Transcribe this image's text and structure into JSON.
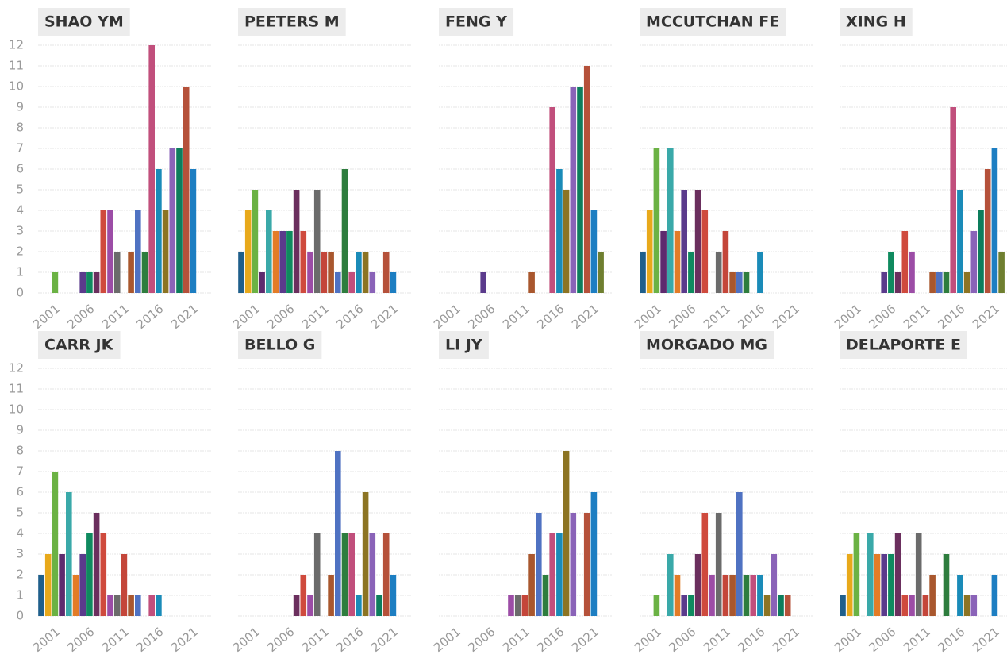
{
  "bar_colors": [
    "#1f5f8b",
    "#e8a91b",
    "#6bb244",
    "#5e2a6e",
    "#3aa9a9",
    "#e37c27",
    "#5b3b8c",
    "#0f8a5f",
    "#6b2f5e",
    "#cf4a3d",
    "#9c4da6",
    "#6b6b6b",
    "#c4463a",
    "#a9572e",
    "#4f72c2",
    "#2e7d3e",
    "#c14f7c",
    "#1a8bb8",
    "#8c7423",
    "#8a63b8",
    "#0c7d5c",
    "#b5513a",
    "#1d7ec2",
    "#6f7f30"
  ],
  "chart_data": [
    {
      "type": "bar",
      "title": "SHAO YM",
      "categories": [
        null,
        null,
        "2001",
        null,
        null,
        null,
        null,
        "2006",
        null,
        null,
        null,
        null,
        "2011",
        null,
        null,
        null,
        null,
        "2016",
        null,
        null,
        null,
        null,
        "2021",
        null
      ],
      "values": [
        0,
        0,
        1,
        0,
        0,
        0,
        1,
        1,
        1,
        4,
        4,
        2,
        0,
        2,
        4,
        2,
        12,
        6,
        4,
        7,
        7,
        10,
        6,
        0
      ],
      "ylim": [
        0,
        12
      ],
      "yticks": [
        0,
        1,
        2,
        3,
        4,
        5,
        6,
        7,
        8,
        9,
        10,
        11,
        12
      ],
      "grid": true
    },
    {
      "type": "bar",
      "title": "PEETERS M",
      "categories": [
        null,
        null,
        "2001",
        null,
        null,
        null,
        null,
        "2006",
        null,
        null,
        null,
        null,
        "2011",
        null,
        null,
        null,
        null,
        "2016",
        null,
        null,
        null,
        null,
        "2021",
        null
      ],
      "values": [
        2,
        4,
        5,
        1,
        4,
        3,
        3,
        3,
        5,
        3,
        2,
        5,
        2,
        2,
        1,
        6,
        1,
        2,
        2,
        1,
        0,
        2,
        1,
        0
      ],
      "ylim": [
        0,
        12
      ],
      "yticks": [
        0,
        1,
        2,
        3,
        4,
        5,
        6,
        7,
        8,
        9,
        10,
        11,
        12
      ],
      "grid": true
    },
    {
      "type": "bar",
      "title": "FENG Y",
      "categories": [
        null,
        null,
        "2001",
        null,
        null,
        null,
        null,
        "2006",
        null,
        null,
        null,
        null,
        "2011",
        null,
        null,
        null,
        null,
        "2016",
        null,
        null,
        null,
        null,
        "2021",
        null
      ],
      "values": [
        0,
        0,
        0,
        0,
        0,
        0,
        1,
        0,
        0,
        0,
        0,
        0,
        0,
        1,
        0,
        0,
        9,
        6,
        5,
        10,
        10,
        11,
        4,
        2
      ],
      "ylim": [
        0,
        12
      ],
      "yticks": [
        0,
        1,
        2,
        3,
        4,
        5,
        6,
        7,
        8,
        9,
        10,
        11,
        12
      ],
      "grid": true
    },
    {
      "type": "bar",
      "title": "MCCUTCHAN FE",
      "categories": [
        null,
        null,
        "2001",
        null,
        null,
        null,
        null,
        "2006",
        null,
        null,
        null,
        null,
        "2011",
        null,
        null,
        null,
        null,
        "2016",
        null,
        null,
        null,
        null,
        "2021",
        null
      ],
      "values": [
        2,
        4,
        7,
        3,
        7,
        3,
        5,
        2,
        5,
        4,
        0,
        2,
        3,
        1,
        1,
        1,
        0,
        2,
        0,
        0,
        0,
        0,
        0,
        0
      ],
      "ylim": [
        0,
        12
      ],
      "yticks": [
        0,
        1,
        2,
        3,
        4,
        5,
        6,
        7,
        8,
        9,
        10,
        11,
        12
      ],
      "grid": true
    },
    {
      "type": "bar",
      "title": "XING H",
      "categories": [
        null,
        null,
        "2001",
        null,
        null,
        null,
        null,
        "2006",
        null,
        null,
        null,
        null,
        "2011",
        null,
        null,
        null,
        null,
        "2016",
        null,
        null,
        null,
        null,
        "2021",
        null
      ],
      "values": [
        0,
        0,
        0,
        0,
        0,
        0,
        1,
        2,
        1,
        3,
        2,
        0,
        0,
        1,
        1,
        1,
        9,
        5,
        1,
        3,
        4,
        6,
        7,
        2
      ],
      "ylim": [
        0,
        12
      ],
      "yticks": [
        0,
        1,
        2,
        3,
        4,
        5,
        6,
        7,
        8,
        9,
        10,
        11,
        12
      ],
      "grid": true
    },
    {
      "type": "bar",
      "title": "CARR JK",
      "categories": [
        null,
        null,
        "2001",
        null,
        null,
        null,
        null,
        "2006",
        null,
        null,
        null,
        null,
        "2011",
        null,
        null,
        null,
        null,
        "2016",
        null,
        null,
        null,
        null,
        "2021",
        null
      ],
      "values": [
        2,
        3,
        7,
        3,
        6,
        2,
        3,
        4,
        5,
        4,
        1,
        1,
        3,
        1,
        1,
        0,
        1,
        1,
        0,
        0,
        0,
        0,
        0,
        0
      ],
      "ylim": [
        0,
        12
      ],
      "yticks": [
        0,
        1,
        2,
        3,
        4,
        5,
        6,
        7,
        8,
        9,
        10,
        11,
        12
      ],
      "grid": true
    },
    {
      "type": "bar",
      "title": "BELLO G",
      "categories": [
        null,
        null,
        "2001",
        null,
        null,
        null,
        null,
        "2006",
        null,
        null,
        null,
        null,
        "2011",
        null,
        null,
        null,
        null,
        "2016",
        null,
        null,
        null,
        null,
        "2021",
        null
      ],
      "values": [
        0,
        0,
        0,
        0,
        0,
        0,
        0,
        0,
        1,
        2,
        1,
        4,
        0,
        2,
        8,
        4,
        4,
        1,
        6,
        4,
        1,
        4,
        2,
        0
      ],
      "ylim": [
        0,
        12
      ],
      "yticks": [
        0,
        1,
        2,
        3,
        4,
        5,
        6,
        7,
        8,
        9,
        10,
        11,
        12
      ],
      "grid": true
    },
    {
      "type": "bar",
      "title": "LI JY",
      "categories": [
        null,
        null,
        "2001",
        null,
        null,
        null,
        null,
        "2006",
        null,
        null,
        null,
        null,
        "2011",
        null,
        null,
        null,
        null,
        "2016",
        null,
        null,
        null,
        null,
        "2021",
        null
      ],
      "values": [
        0,
        0,
        0,
        0,
        0,
        0,
        0,
        0,
        0,
        0,
        1,
        1,
        1,
        3,
        5,
        2,
        4,
        4,
        8,
        5,
        0,
        5,
        6,
        0
      ],
      "ylim": [
        0,
        12
      ],
      "yticks": [
        0,
        1,
        2,
        3,
        4,
        5,
        6,
        7,
        8,
        9,
        10,
        11,
        12
      ],
      "grid": true
    },
    {
      "type": "bar",
      "title": "MORGADO MG",
      "categories": [
        null,
        null,
        "2001",
        null,
        null,
        null,
        null,
        "2006",
        null,
        null,
        null,
        null,
        "2011",
        null,
        null,
        null,
        null,
        "2016",
        null,
        null,
        null,
        null,
        "2021",
        null
      ],
      "values": [
        0,
        0,
        1,
        0,
        3,
        2,
        1,
        1,
        3,
        5,
        2,
        5,
        2,
        2,
        6,
        2,
        2,
        2,
        1,
        3,
        1,
        1,
        0,
        0
      ],
      "ylim": [
        0,
        12
      ],
      "yticks": [
        0,
        1,
        2,
        3,
        4,
        5,
        6,
        7,
        8,
        9,
        10,
        11,
        12
      ],
      "grid": true
    },
    {
      "type": "bar",
      "title": "DELAPORTE E",
      "categories": [
        null,
        null,
        "2001",
        null,
        null,
        null,
        null,
        "2006",
        null,
        null,
        null,
        null,
        "2011",
        null,
        null,
        null,
        null,
        "2016",
        null,
        null,
        null,
        null,
        "2021",
        null
      ],
      "values": [
        1,
        3,
        4,
        0,
        4,
        3,
        3,
        3,
        4,
        1,
        1,
        4,
        1,
        2,
        0,
        3,
        0,
        2,
        1,
        1,
        0,
        0,
        2,
        0
      ],
      "ylim": [
        0,
        12
      ],
      "yticks": [
        0,
        1,
        2,
        3,
        4,
        5,
        6,
        7,
        8,
        9,
        10,
        11,
        12
      ],
      "grid": true
    }
  ]
}
